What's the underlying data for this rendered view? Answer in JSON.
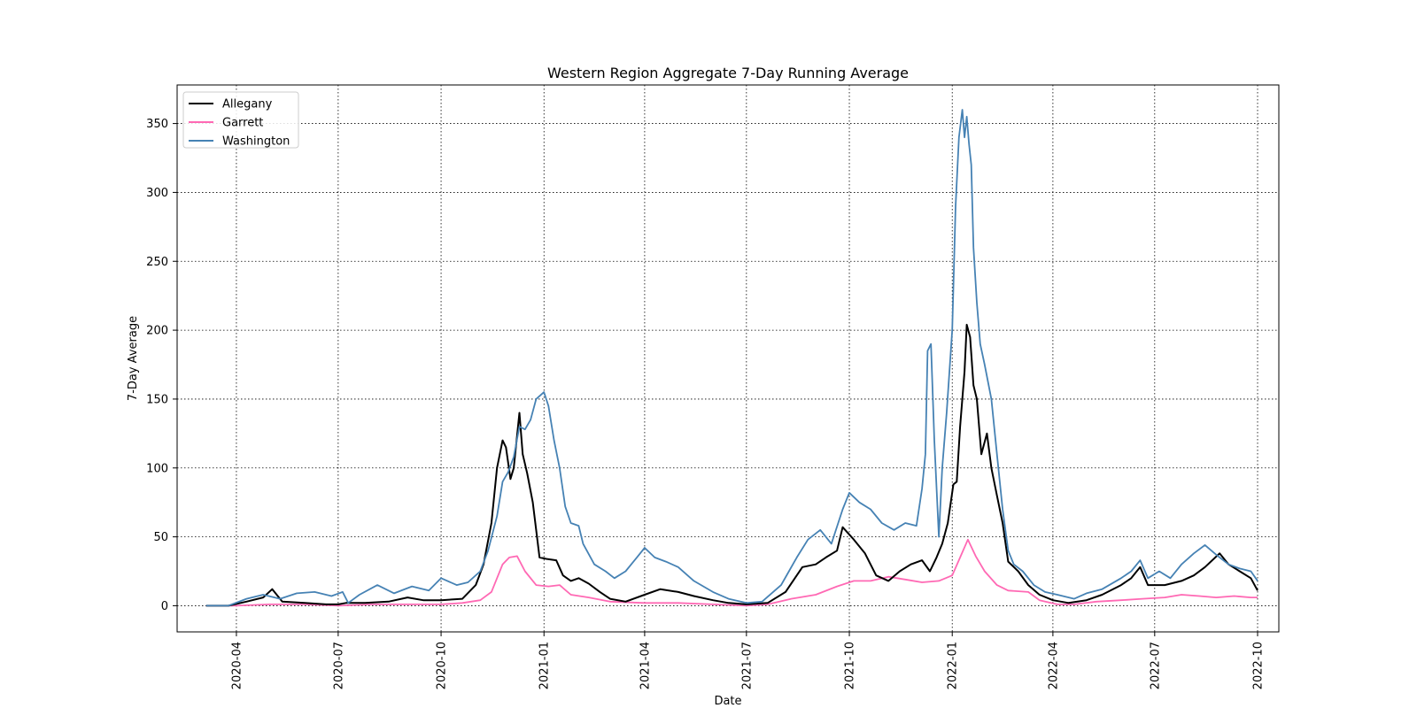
{
  "chart_data": {
    "type": "line",
    "title": "Western Region Aggregate 7-Day Running Average",
    "xlabel": "Date",
    "ylabel": "7-Day Average",
    "xlim": [
      "2020-02-08",
      "2022-10-20"
    ],
    "ylim": [
      -19,
      378
    ],
    "x_ticks": [
      "2020-04",
      "2020-07",
      "2020-10",
      "2021-01",
      "2021-04",
      "2021-07",
      "2021-10",
      "2022-01",
      "2022-04",
      "2022-07",
      "2022-10"
    ],
    "y_ticks": [
      0,
      50,
      100,
      150,
      200,
      250,
      300,
      350
    ],
    "grid": true,
    "legend_position": "upper-left",
    "series": [
      {
        "name": "Allegany",
        "color": "#000000",
        "points": [
          [
            "2020-03-05",
            0
          ],
          [
            "2020-03-25",
            0
          ],
          [
            "2020-04-10",
            3
          ],
          [
            "2020-04-25",
            6
          ],
          [
            "2020-05-03",
            12
          ],
          [
            "2020-05-12",
            3
          ],
          [
            "2020-06-01",
            2
          ],
          [
            "2020-06-20",
            1
          ],
          [
            "2020-07-01",
            1
          ],
          [
            "2020-07-08",
            2
          ],
          [
            "2020-07-25",
            2
          ],
          [
            "2020-08-15",
            3
          ],
          [
            "2020-09-01",
            6
          ],
          [
            "2020-09-15",
            4
          ],
          [
            "2020-10-01",
            4
          ],
          [
            "2020-10-20",
            5
          ],
          [
            "2020-11-01",
            15
          ],
          [
            "2020-11-08",
            30
          ],
          [
            "2020-11-15",
            60
          ],
          [
            "2020-11-20",
            100
          ],
          [
            "2020-11-25",
            120
          ],
          [
            "2020-11-28",
            115
          ],
          [
            "2020-12-02",
            92
          ],
          [
            "2020-12-05",
            100
          ],
          [
            "2020-12-10",
            140
          ],
          [
            "2020-12-13",
            110
          ],
          [
            "2020-12-17",
            96
          ],
          [
            "2020-12-22",
            75
          ],
          [
            "2020-12-25",
            55
          ],
          [
            "2020-12-28",
            35
          ],
          [
            "2021-01-03",
            34
          ],
          [
            "2021-01-12",
            33
          ],
          [
            "2021-01-18",
            22
          ],
          [
            "2021-01-25",
            18
          ],
          [
            "2021-02-01",
            20
          ],
          [
            "2021-02-10",
            16
          ],
          [
            "2021-02-20",
            10
          ],
          [
            "2021-03-01",
            5
          ],
          [
            "2021-03-15",
            3
          ],
          [
            "2021-04-01",
            8
          ],
          [
            "2021-04-15",
            12
          ],
          [
            "2021-05-01",
            10
          ],
          [
            "2021-05-15",
            7
          ],
          [
            "2021-06-01",
            4
          ],
          [
            "2021-06-15",
            2
          ],
          [
            "2021-07-01",
            1
          ],
          [
            "2021-07-20",
            2
          ],
          [
            "2021-08-05",
            10
          ],
          [
            "2021-08-20",
            28
          ],
          [
            "2021-09-01",
            30
          ],
          [
            "2021-09-10",
            35
          ],
          [
            "2021-09-20",
            40
          ],
          [
            "2021-09-25",
            57
          ],
          [
            "2021-10-05",
            48
          ],
          [
            "2021-10-15",
            38
          ],
          [
            "2021-10-25",
            22
          ],
          [
            "2021-11-05",
            18
          ],
          [
            "2021-11-15",
            25
          ],
          [
            "2021-11-25",
            30
          ],
          [
            "2021-12-05",
            33
          ],
          [
            "2021-12-12",
            25
          ],
          [
            "2021-12-18",
            35
          ],
          [
            "2021-12-23",
            45
          ],
          [
            "2021-12-28",
            60
          ],
          [
            "2022-01-02",
            88
          ],
          [
            "2022-01-05",
            90
          ],
          [
            "2022-01-08",
            130
          ],
          [
            "2022-01-12",
            170
          ],
          [
            "2022-01-14",
            204
          ],
          [
            "2022-01-17",
            195
          ],
          [
            "2022-01-20",
            160
          ],
          [
            "2022-01-23",
            150
          ],
          [
            "2022-01-27",
            110
          ],
          [
            "2022-02-01",
            125
          ],
          [
            "2022-02-05",
            100
          ],
          [
            "2022-02-10",
            80
          ],
          [
            "2022-02-15",
            60
          ],
          [
            "2022-02-20",
            32
          ],
          [
            "2022-03-01",
            25
          ],
          [
            "2022-03-10",
            15
          ],
          [
            "2022-03-20",
            8
          ],
          [
            "2022-04-01",
            4
          ],
          [
            "2022-04-15",
            2
          ],
          [
            "2022-05-01",
            4
          ],
          [
            "2022-05-15",
            8
          ],
          [
            "2022-06-01",
            15
          ],
          [
            "2022-06-10",
            20
          ],
          [
            "2022-06-18",
            28
          ],
          [
            "2022-06-25",
            15
          ],
          [
            "2022-07-10",
            15
          ],
          [
            "2022-07-25",
            18
          ],
          [
            "2022-08-05",
            22
          ],
          [
            "2022-08-15",
            28
          ],
          [
            "2022-08-28",
            38
          ],
          [
            "2022-09-05",
            30
          ],
          [
            "2022-09-15",
            25
          ],
          [
            "2022-09-25",
            20
          ],
          [
            "2022-10-01",
            11
          ]
        ]
      },
      {
        "name": "Garrett",
        "color": "#ff69b4",
        "points": [
          [
            "2020-03-05",
            0
          ],
          [
            "2020-04-01",
            0
          ],
          [
            "2020-05-01",
            1
          ],
          [
            "2020-06-01",
            1
          ],
          [
            "2020-07-01",
            0
          ],
          [
            "2020-08-01",
            1
          ],
          [
            "2020-09-01",
            1
          ],
          [
            "2020-10-01",
            1
          ],
          [
            "2020-10-20",
            2
          ],
          [
            "2020-11-05",
            4
          ],
          [
            "2020-11-15",
            10
          ],
          [
            "2020-11-20",
            20
          ],
          [
            "2020-11-25",
            30
          ],
          [
            "2020-12-01",
            35
          ],
          [
            "2020-12-08",
            36
          ],
          [
            "2020-12-15",
            25
          ],
          [
            "2020-12-25",
            15
          ],
          [
            "2021-01-05",
            14
          ],
          [
            "2021-01-15",
            15
          ],
          [
            "2021-01-25",
            8
          ],
          [
            "2021-02-10",
            6
          ],
          [
            "2021-03-01",
            3
          ],
          [
            "2021-04-01",
            2
          ],
          [
            "2021-05-01",
            2
          ],
          [
            "2021-06-01",
            1
          ],
          [
            "2021-07-01",
            0
          ],
          [
            "2021-07-20",
            1
          ],
          [
            "2021-08-10",
            5
          ],
          [
            "2021-09-01",
            8
          ],
          [
            "2021-09-20",
            14
          ],
          [
            "2021-10-05",
            18
          ],
          [
            "2021-10-20",
            18
          ],
          [
            "2021-11-05",
            21
          ],
          [
            "2021-11-20",
            19
          ],
          [
            "2021-12-05",
            17
          ],
          [
            "2021-12-20",
            18
          ],
          [
            "2022-01-01",
            22
          ],
          [
            "2022-01-08",
            35
          ],
          [
            "2022-01-15",
            48
          ],
          [
            "2022-01-22",
            36
          ],
          [
            "2022-01-30",
            25
          ],
          [
            "2022-02-10",
            15
          ],
          [
            "2022-02-20",
            11
          ],
          [
            "2022-03-10",
            10
          ],
          [
            "2022-03-20",
            4
          ],
          [
            "2022-04-05",
            1
          ],
          [
            "2022-04-20",
            1
          ],
          [
            "2022-05-10",
            3
          ],
          [
            "2022-06-01",
            4
          ],
          [
            "2022-06-20",
            5
          ],
          [
            "2022-07-10",
            6
          ],
          [
            "2022-07-25",
            8
          ],
          [
            "2022-08-10",
            7
          ],
          [
            "2022-08-25",
            6
          ],
          [
            "2022-09-10",
            7
          ],
          [
            "2022-09-25",
            6
          ],
          [
            "2022-10-01",
            6
          ]
        ]
      },
      {
        "name": "Washington",
        "color": "#4682b4",
        "points": [
          [
            "2020-03-05",
            0
          ],
          [
            "2020-03-25",
            0
          ],
          [
            "2020-04-10",
            5
          ],
          [
            "2020-04-25",
            8
          ],
          [
            "2020-05-10",
            5
          ],
          [
            "2020-05-25",
            9
          ],
          [
            "2020-06-10",
            10
          ],
          [
            "2020-06-25",
            7
          ],
          [
            "2020-07-05",
            10
          ],
          [
            "2020-07-10",
            2
          ],
          [
            "2020-07-20",
            8
          ],
          [
            "2020-08-05",
            15
          ],
          [
            "2020-08-20",
            9
          ],
          [
            "2020-09-05",
            14
          ],
          [
            "2020-09-20",
            11
          ],
          [
            "2020-10-01",
            20
          ],
          [
            "2020-10-15",
            15
          ],
          [
            "2020-10-25",
            17
          ],
          [
            "2020-11-05",
            25
          ],
          [
            "2020-11-12",
            40
          ],
          [
            "2020-11-20",
            65
          ],
          [
            "2020-11-25",
            90
          ],
          [
            "2020-11-30",
            97
          ],
          [
            "2020-12-05",
            108
          ],
          [
            "2020-12-10",
            130
          ],
          [
            "2020-12-15",
            128
          ],
          [
            "2020-12-20",
            135
          ],
          [
            "2020-12-25",
            150
          ],
          [
            "2021-01-01",
            155
          ],
          [
            "2021-01-05",
            145
          ],
          [
            "2021-01-10",
            120
          ],
          [
            "2021-01-15",
            100
          ],
          [
            "2021-01-20",
            72
          ],
          [
            "2021-01-25",
            60
          ],
          [
            "2021-02-01",
            58
          ],
          [
            "2021-02-05",
            45
          ],
          [
            "2021-02-15",
            30
          ],
          [
            "2021-02-25",
            25
          ],
          [
            "2021-03-05",
            20
          ],
          [
            "2021-03-15",
            25
          ],
          [
            "2021-03-25",
            35
          ],
          [
            "2021-04-01",
            42
          ],
          [
            "2021-04-10",
            35
          ],
          [
            "2021-04-20",
            32
          ],
          [
            "2021-05-01",
            28
          ],
          [
            "2021-05-15",
            18
          ],
          [
            "2021-06-01",
            10
          ],
          [
            "2021-06-15",
            5
          ],
          [
            "2021-07-01",
            2
          ],
          [
            "2021-07-15",
            3
          ],
          [
            "2021-08-01",
            15
          ],
          [
            "2021-08-15",
            35
          ],
          [
            "2021-08-25",
            48
          ],
          [
            "2021-09-05",
            55
          ],
          [
            "2021-09-15",
            45
          ],
          [
            "2021-09-25",
            70
          ],
          [
            "2021-10-01",
            82
          ],
          [
            "2021-10-10",
            75
          ],
          [
            "2021-10-20",
            70
          ],
          [
            "2021-10-30",
            60
          ],
          [
            "2021-11-10",
            55
          ],
          [
            "2021-11-20",
            60
          ],
          [
            "2021-11-30",
            58
          ],
          [
            "2021-12-05",
            85
          ],
          [
            "2021-12-08",
            110
          ],
          [
            "2021-12-10",
            185
          ],
          [
            "2021-12-13",
            190
          ],
          [
            "2021-12-16",
            120
          ],
          [
            "2021-12-20",
            50
          ],
          [
            "2021-12-23",
            100
          ],
          [
            "2021-12-27",
            140
          ],
          [
            "2022-01-01",
            200
          ],
          [
            "2022-01-04",
            290
          ],
          [
            "2022-01-07",
            340
          ],
          [
            "2022-01-10",
            360
          ],
          [
            "2022-01-12",
            340
          ],
          [
            "2022-01-14",
            355
          ],
          [
            "2022-01-16",
            335
          ],
          [
            "2022-01-18",
            320
          ],
          [
            "2022-01-20",
            260
          ],
          [
            "2022-01-23",
            220
          ],
          [
            "2022-01-26",
            190
          ],
          [
            "2022-01-30",
            175
          ],
          [
            "2022-02-05",
            150
          ],
          [
            "2022-02-10",
            110
          ],
          [
            "2022-02-15",
            70
          ],
          [
            "2022-02-20",
            40
          ],
          [
            "2022-02-25",
            30
          ],
          [
            "2022-03-05",
            25
          ],
          [
            "2022-03-15",
            15
          ],
          [
            "2022-03-25",
            10
          ],
          [
            "2022-04-05",
            8
          ],
          [
            "2022-04-20",
            5
          ],
          [
            "2022-05-01",
            9
          ],
          [
            "2022-05-15",
            12
          ],
          [
            "2022-06-01",
            20
          ],
          [
            "2022-06-10",
            25
          ],
          [
            "2022-06-18",
            33
          ],
          [
            "2022-06-25",
            20
          ],
          [
            "2022-07-05",
            25
          ],
          [
            "2022-07-15",
            20
          ],
          [
            "2022-07-25",
            30
          ],
          [
            "2022-08-05",
            38
          ],
          [
            "2022-08-15",
            44
          ],
          [
            "2022-08-25",
            37
          ],
          [
            "2022-09-05",
            30
          ],
          [
            "2022-09-15",
            27
          ],
          [
            "2022-09-25",
            25
          ],
          [
            "2022-10-01",
            18
          ]
        ]
      }
    ]
  }
}
